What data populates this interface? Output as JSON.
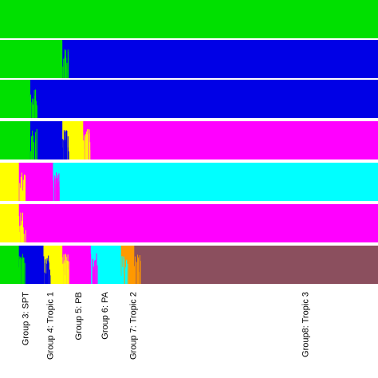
{
  "chart_data": {
    "type": "bar",
    "subtype": "stacked-admixture",
    "title": "",
    "xlabel": "",
    "ylabel": "",
    "ylim": [
      0,
      1
    ],
    "grid": false,
    "legend": "none",
    "panels": [
      {
        "K": 2,
        "segments": [
          {
            "color": "#00e000",
            "from": 0.0,
            "to": 1.0
          }
        ]
      },
      {
        "K": 3,
        "segments": [
          {
            "color": "#00e000",
            "from": 0.0,
            "to": 0.165
          },
          {
            "color": "#0000e6",
            "from": 0.165,
            "to": 1.0
          }
        ]
      },
      {
        "K": 4,
        "segments": [
          {
            "color": "#00e000",
            "from": 0.0,
            "to": 0.08
          },
          {
            "color": "#0000e6",
            "from": 0.08,
            "to": 1.0
          }
        ]
      },
      {
        "K": 5,
        "segments": [
          {
            "color": "#00e000",
            "from": 0.0,
            "to": 0.08
          },
          {
            "color": "#0000e6",
            "from": 0.08,
            "to": 0.165
          },
          {
            "color": "#ffff00",
            "from": 0.165,
            "to": 0.22
          },
          {
            "color": "#ff00ff",
            "from": 0.22,
            "to": 1.0
          }
        ]
      },
      {
        "K": 6,
        "segments": [
          {
            "color": "#ffff00",
            "from": 0.0,
            "to": 0.05
          },
          {
            "color": "#ff00ff",
            "from": 0.05,
            "to": 0.14
          },
          {
            "color": "#00ffff",
            "from": 0.14,
            "to": 1.0
          }
        ]
      },
      {
        "K": 7,
        "segments": [
          {
            "color": "#ffff00",
            "from": 0.0,
            "to": 0.05
          },
          {
            "color": "#ff00ff",
            "from": 0.05,
            "to": 1.0
          }
        ]
      },
      {
        "K": 8,
        "segments": [
          {
            "color": "#00e000",
            "from": 0.0,
            "to": 0.05
          },
          {
            "color": "#0000e6",
            "from": 0.05,
            "to": 0.115
          },
          {
            "color": "#ffff00",
            "from": 0.115,
            "to": 0.165
          },
          {
            "color": "#ff00ff",
            "from": 0.165,
            "to": 0.24
          },
          {
            "color": "#00ffff",
            "from": 0.24,
            "to": 0.32
          },
          {
            "color": "#ff9900",
            "from": 0.32,
            "to": 0.355
          },
          {
            "color": "#8b4f5e",
            "from": 0.355,
            "to": 1.0
          }
        ]
      }
    ],
    "groups": [
      {
        "label": "Group 3: SPT",
        "position": 0.075
      },
      {
        "label": "Group 4: Tropic 1",
        "position": 0.14
      },
      {
        "label": "Group 5: PB",
        "position": 0.215
      },
      {
        "label": "Group 6: PA",
        "position": 0.285
      },
      {
        "label": "Group 7: Tropic 2",
        "position": 0.36
      },
      {
        "label": "Group8: Tropic 3",
        "position": 0.815
      }
    ]
  }
}
